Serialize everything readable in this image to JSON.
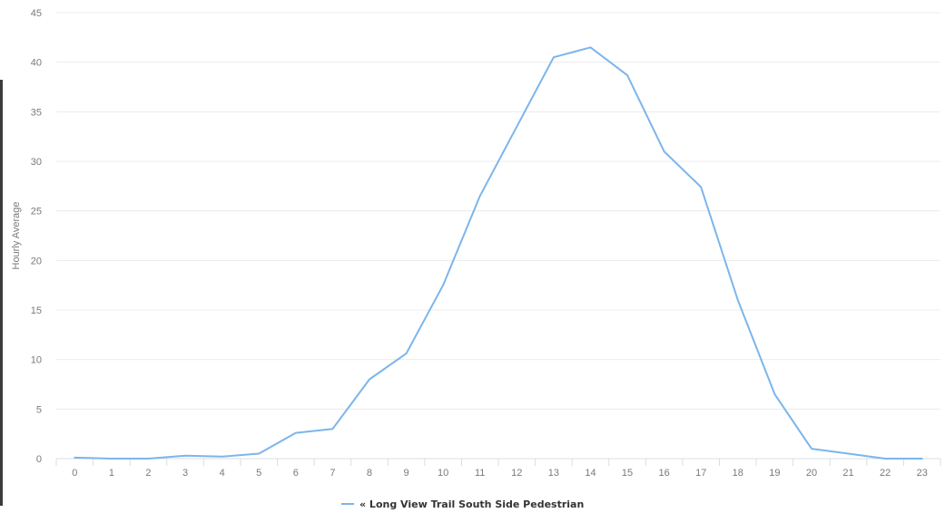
{
  "chart_data": {
    "type": "line",
    "title": "",
    "xlabel": "",
    "ylabel": "Hourly Average",
    "x": [
      "0",
      "1",
      "2",
      "3",
      "4",
      "5",
      "6",
      "7",
      "8",
      "9",
      "10",
      "11",
      "12",
      "13",
      "14",
      "15",
      "16",
      "17",
      "18",
      "19",
      "20",
      "21",
      "22",
      "23"
    ],
    "y_ticks": [
      "0",
      "5",
      "10",
      "15",
      "20",
      "25",
      "30",
      "35",
      "40",
      "45"
    ],
    "ylim": [
      0,
      45
    ],
    "grid": true,
    "legend_position": "bottom",
    "series": [
      {
        "name": "Long View Trail South Side Pedestrian",
        "legend_label": "« Long View Trail South Side Pedestrian",
        "color": "#7cb5ec",
        "values": [
          0.1,
          0.0,
          0.0,
          0.3,
          0.2,
          0.5,
          2.6,
          3.0,
          8.0,
          10.6,
          17.5,
          26.5,
          33.5,
          40.5,
          41.5,
          38.7,
          31.0,
          27.4,
          16.0,
          6.5,
          1.0,
          0.5,
          0.0,
          0.0
        ]
      }
    ]
  }
}
